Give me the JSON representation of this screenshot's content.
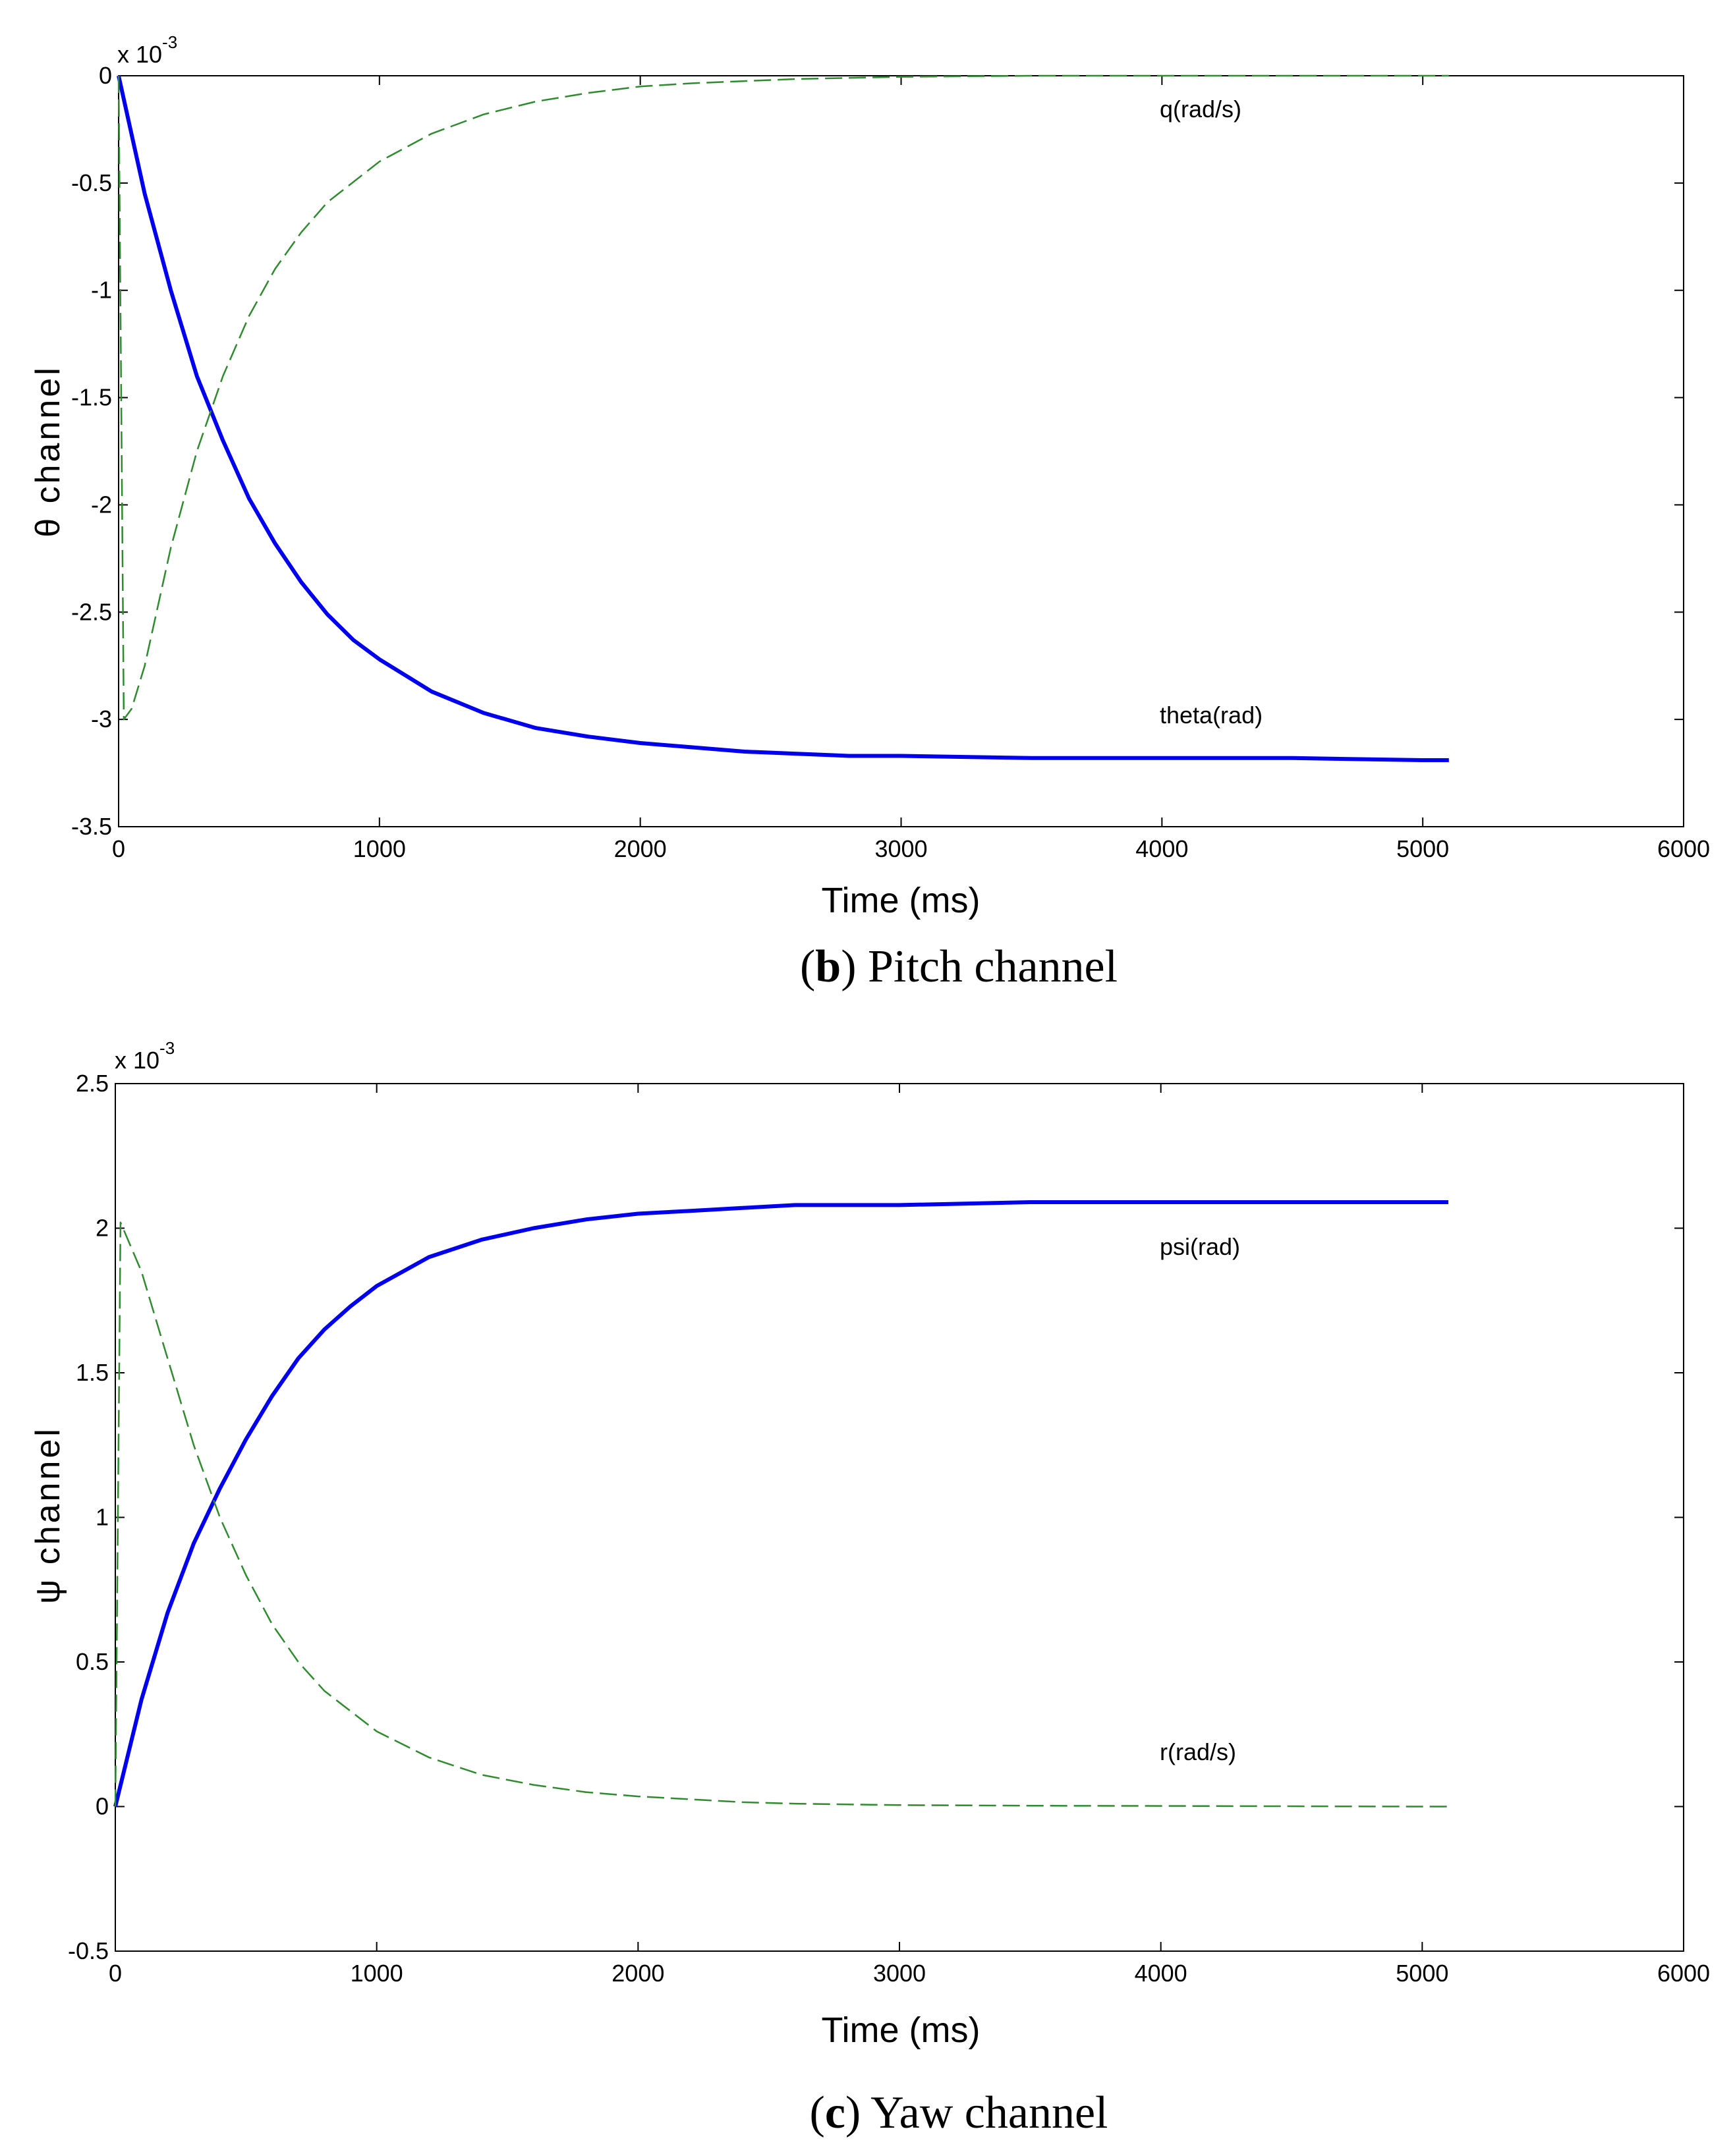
{
  "chart_data": [
    {
      "type": "line",
      "caption_letter": "b",
      "caption_text": " Pitch channel",
      "ylabel": "θ channel",
      "xlabel": "Time (ms)",
      "exponent_label": "x 10",
      "exponent_power": "-3",
      "xlim": [
        0,
        6000
      ],
      "ylim": [
        -3.5,
        0
      ],
      "xticks": [
        0,
        1000,
        2000,
        3000,
        4000,
        5000,
        6000
      ],
      "yticks": [
        -3.5,
        -3,
        -2.5,
        -2,
        -1.5,
        -1,
        -0.5,
        0
      ],
      "series": [
        {
          "name": "theta(rad)",
          "style": "solid",
          "color": "#0000ee",
          "x": [
            0,
            100,
            200,
            300,
            400,
            500,
            600,
            700,
            800,
            900,
            1000,
            1200,
            1400,
            1600,
            1800,
            2000,
            2200,
            2400,
            2600,
            2800,
            3000,
            3500,
            4000,
            4500,
            5000,
            5100
          ],
          "y": [
            0,
            -0.55,
            -1.0,
            -1.4,
            -1.7,
            -1.97,
            -2.18,
            -2.36,
            -2.51,
            -2.63,
            -2.72,
            -2.87,
            -2.97,
            -3.04,
            -3.08,
            -3.11,
            -3.13,
            -3.15,
            -3.16,
            -3.17,
            -3.17,
            -3.18,
            -3.18,
            -3.18,
            -3.19,
            -3.19
          ]
        },
        {
          "name": "q(rad/s)",
          "style": "dashed",
          "color": "#2e8b2e",
          "x": [
            0,
            20,
            50,
            100,
            200,
            300,
            400,
            500,
            600,
            700,
            800,
            1000,
            1200,
            1400,
            1600,
            1800,
            2000,
            2200,
            2400,
            2600,
            3000,
            3500,
            4000,
            5000,
            5100
          ],
          "y": [
            0,
            -3.0,
            -2.95,
            -2.75,
            -2.2,
            -1.75,
            -1.4,
            -1.12,
            -0.9,
            -0.73,
            -0.59,
            -0.4,
            -0.27,
            -0.18,
            -0.12,
            -0.08,
            -0.05,
            -0.035,
            -0.025,
            -0.015,
            -0.005,
            0,
            0,
            0,
            0
          ]
        }
      ]
    },
    {
      "type": "line",
      "caption_letter": "c",
      "caption_text": " Yaw channel",
      "ylabel": "ψ channel",
      "xlabel": "Time (ms)",
      "exponent_label": "x 10",
      "exponent_power": "-3",
      "xlim": [
        0,
        6000
      ],
      "ylim": [
        -0.5,
        2.5
      ],
      "xticks": [
        0,
        1000,
        2000,
        3000,
        4000,
        5000,
        6000
      ],
      "yticks": [
        -0.5,
        0,
        0.5,
        1,
        1.5,
        2,
        2.5
      ],
      "series": [
        {
          "name": "psi(rad)",
          "style": "solid",
          "color": "#0000ee",
          "x": [
            0,
            100,
            200,
            300,
            400,
            500,
            600,
            700,
            800,
            900,
            1000,
            1200,
            1400,
            1600,
            1800,
            2000,
            2200,
            2400,
            2600,
            2800,
            3000,
            3500,
            4000,
            4500,
            5000,
            5100
          ],
          "y": [
            0,
            0.37,
            0.67,
            0.91,
            1.1,
            1.27,
            1.42,
            1.55,
            1.65,
            1.73,
            1.8,
            1.9,
            1.96,
            2.0,
            2.03,
            2.05,
            2.06,
            2.07,
            2.08,
            2.08,
            2.08,
            2.09,
            2.09,
            2.09,
            2.09,
            2.09
          ]
        },
        {
          "name": "r(rad/s)",
          "style": "dashed",
          "color": "#2e8b2e",
          "x": [
            0,
            20,
            100,
            200,
            300,
            400,
            500,
            600,
            700,
            800,
            1000,
            1200,
            1400,
            1600,
            1800,
            2000,
            2200,
            2400,
            2600,
            3000,
            3500,
            4000,
            5000,
            5100
          ],
          "y": [
            0,
            2.02,
            1.85,
            1.55,
            1.25,
            1.0,
            0.8,
            0.63,
            0.5,
            0.4,
            0.26,
            0.17,
            0.11,
            0.075,
            0.05,
            0.035,
            0.025,
            0.015,
            0.01,
            0.005,
            0.003,
            0.002,
            0,
            0
          ]
        }
      ]
    }
  ]
}
